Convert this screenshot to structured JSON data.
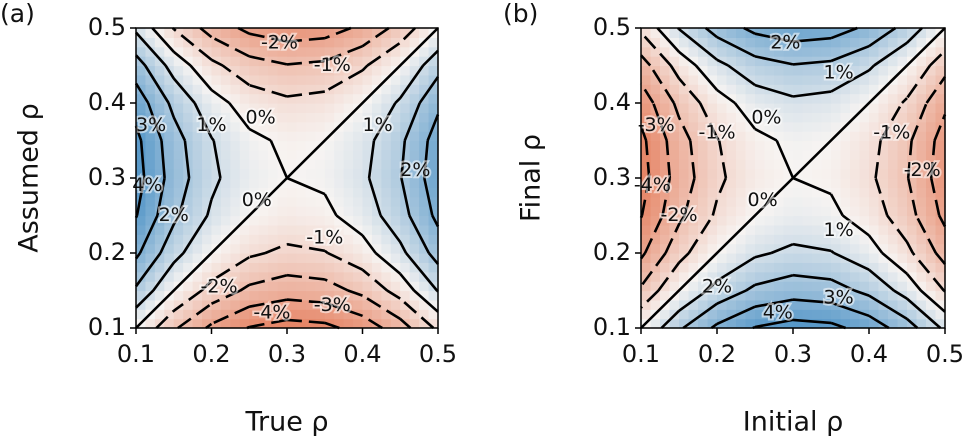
{
  "chart_data": [
    {
      "type": "contour",
      "panel_label": "(a)",
      "xlabel": "True ρ",
      "ylabel": "Assumed ρ",
      "xlim": [
        0.1,
        0.5
      ],
      "ylim": [
        0.1,
        0.5
      ],
      "xticks": [
        0.1,
        0.2,
        0.3,
        0.4,
        0.5
      ],
      "yticks": [
        0.1,
        0.2,
        0.3,
        0.4,
        0.5
      ],
      "x": [
        0.1,
        0.15,
        0.2,
        0.25,
        0.3,
        0.35,
        0.4,
        0.45,
        0.5
      ],
      "y": [
        0.1,
        0.15,
        0.2,
        0.25,
        0.3,
        0.35,
        0.4,
        0.45,
        0.5
      ],
      "z": [
        [
          0,
          -1.85,
          -3.2,
          -4.05,
          -4.4,
          -4.25,
          -3.6,
          -2.45,
          -0.8
        ],
        [
          1.85,
          0,
          -1.35,
          -2.2,
          -2.55,
          -2.4,
          -1.75,
          -0.6,
          1.05
        ],
        [
          3.2,
          1.35,
          0,
          -0.85,
          -1.2,
          -1.05,
          -0.4,
          0.75,
          2.4
        ],
        [
          4.05,
          2.2,
          0.85,
          0,
          -0.35,
          -0.2,
          0.45,
          1.6,
          3.25
        ],
        [
          4.4,
          2.55,
          1.2,
          0.35,
          0,
          0.15,
          0.8,
          1.95,
          3.6
        ],
        [
          4.25,
          2.4,
          1.05,
          0.2,
          -0.15,
          0,
          0.65,
          1.8,
          3.45
        ],
        [
          3.6,
          1.75,
          0.4,
          -0.45,
          -0.8,
          -0.65,
          0,
          1.15,
          2.8
        ],
        [
          2.45,
          0.6,
          -0.75,
          -1.6,
          -1.95,
          -1.8,
          -1.15,
          0,
          1.65
        ],
        [
          0.8,
          -1.05,
          -2.4,
          -3.25,
          -3.6,
          -3.45,
          -2.8,
          -1.65,
          0
        ]
      ],
      "levels": [
        -4,
        -3,
        -2,
        -1,
        0,
        1,
        2,
        3,
        4
      ],
      "contour_labels": [
        {
          "value": -2,
          "label": "-2%"
        },
        {
          "value": -1,
          "label": "-1%"
        },
        {
          "value": 0,
          "label": "0%"
        },
        {
          "value": 1,
          "label": "1%"
        },
        {
          "value": 3,
          "label": "3%"
        },
        {
          "value": 4,
          "label": "4%"
        },
        {
          "value": 2,
          "label": "2%"
        },
        {
          "value": 0,
          "label": "0%"
        },
        {
          "value": -1,
          "label": "-1%"
        },
        {
          "value": -2,
          "label": "-2%"
        },
        {
          "value": -4,
          "label": "-4%"
        },
        {
          "value": -3,
          "label": "-3%"
        },
        {
          "value": 1,
          "label": "1%"
        },
        {
          "value": 2,
          "label": "2%"
        }
      ]
    },
    {
      "type": "contour",
      "panel_label": "(b)",
      "xlabel": "Initial ρ",
      "ylabel": "Final ρ",
      "xlim": [
        0.1,
        0.5
      ],
      "ylim": [
        0.1,
        0.5
      ],
      "xticks": [
        0.1,
        0.2,
        0.3,
        0.4,
        0.5
      ],
      "yticks": [
        0.1,
        0.2,
        0.3,
        0.4,
        0.5
      ],
      "x": [
        0.1,
        0.15,
        0.2,
        0.25,
        0.3,
        0.35,
        0.4,
        0.45,
        0.5
      ],
      "y": [
        0.1,
        0.15,
        0.2,
        0.25,
        0.3,
        0.35,
        0.4,
        0.45,
        0.5
      ],
      "z": [
        [
          0,
          1.85,
          3.2,
          4.05,
          4.4,
          4.25,
          3.6,
          2.45,
          0.8
        ],
        [
          -1.85,
          0,
          1.35,
          2.2,
          2.55,
          2.4,
          1.75,
          0.6,
          -1.05
        ],
        [
          -3.2,
          -1.35,
          0,
          0.85,
          1.2,
          1.05,
          0.4,
          -0.75,
          -2.4
        ],
        [
          -4.05,
          -2.2,
          -0.85,
          0,
          0.35,
          0.2,
          -0.45,
          -1.6,
          -3.25
        ],
        [
          -4.4,
          -2.55,
          -1.2,
          -0.35,
          0,
          -0.15,
          -0.8,
          -1.95,
          -3.6
        ],
        [
          -4.25,
          -2.4,
          -1.05,
          -0.2,
          0.15,
          0,
          -0.65,
          -1.8,
          -3.45
        ],
        [
          -3.6,
          -1.75,
          -0.4,
          0.45,
          0.8,
          0.65,
          0,
          -1.15,
          -2.8
        ],
        [
          -2.45,
          -0.6,
          0.75,
          1.6,
          1.95,
          1.8,
          1.15,
          0,
          -1.65
        ],
        [
          -0.8,
          1.05,
          2.4,
          3.25,
          3.6,
          3.45,
          2.8,
          1.65,
          0
        ]
      ],
      "levels": [
        -4,
        -3,
        -2,
        -1,
        0,
        1,
        2,
        3,
        4
      ],
      "contour_labels": [
        {
          "value": 2,
          "label": "2%"
        },
        {
          "value": 1,
          "label": "1%"
        },
        {
          "value": 0,
          "label": "0%"
        },
        {
          "value": -1,
          "label": "-1%"
        },
        {
          "value": -3,
          "label": "-3%"
        },
        {
          "value": -4,
          "label": "-4%"
        },
        {
          "value": -2,
          "label": "-2%"
        },
        {
          "value": 0,
          "label": "0%"
        },
        {
          "value": 1,
          "label": "1%"
        },
        {
          "value": 2,
          "label": "2%"
        },
        {
          "value": 4,
          "label": "4%"
        },
        {
          "value": 3,
          "label": "3%"
        },
        {
          "value": -1,
          "label": "-1%"
        },
        {
          "value": -2,
          "label": "-2%"
        }
      ]
    }
  ]
}
